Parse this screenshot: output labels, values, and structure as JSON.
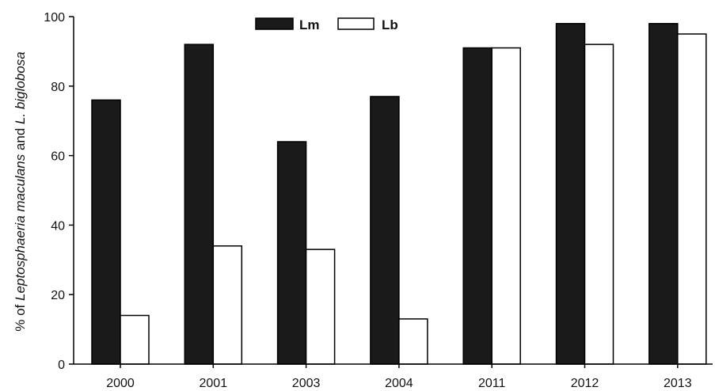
{
  "chart_data": {
    "type": "bar",
    "categories": [
      "2000",
      "2001",
      "2003",
      "2004",
      "2011",
      "2012",
      "2013"
    ],
    "series": [
      {
        "name": "Lm",
        "values": [
          76,
          92,
          64,
          77,
          91,
          98,
          98
        ],
        "fill": "#1a1a1a"
      },
      {
        "name": "Lb",
        "values": [
          14,
          34,
          33,
          13,
          91,
          92,
          95
        ],
        "fill": "#ffffff"
      }
    ],
    "ylabel": {
      "part1": "% of ",
      "part2": "Leptosphaeria maculans",
      "part3": " and ",
      "part4": "L. biglobosa"
    },
    "ylim": [
      0,
      100
    ],
    "yticks": [
      "0",
      "20",
      "40",
      "60",
      "80",
      "100"
    ],
    "grid": false,
    "legend_position": "top-center"
  }
}
